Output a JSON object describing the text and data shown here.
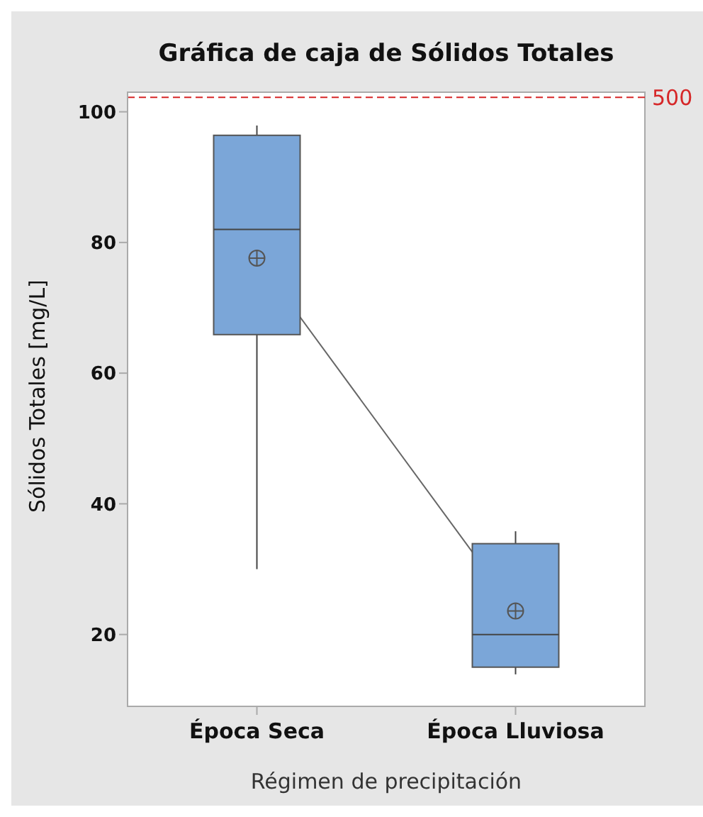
{
  "chart_data": {
    "type": "box",
    "title": "Gráfica de caja de Sólidos Totales",
    "xlabel": "Régimen de precipitación",
    "ylabel": "Sólidos Totales [mg/L]",
    "categories": [
      "Época Seca",
      "Época Lluviosa"
    ],
    "series": [
      {
        "color": "#7ba6d8",
        "boxes": [
          {
            "low": 30,
            "q1": 65.9,
            "median": 82,
            "q3": 96.4,
            "high": 97.9,
            "mean": 77.6
          },
          {
            "low": 13.9,
            "q1": 15,
            "median": 20,
            "q3": 33.9,
            "high": 35.8,
            "mean": 23.6
          }
        ]
      },
      {
        "type": "line",
        "color": "#666666",
        "values": [
          77.6,
          23.6
        ]
      }
    ],
    "ylim": [
      9,
      103
    ],
    "yticks": [
      20,
      40,
      60,
      80,
      100
    ],
    "ref_lines": [
      {
        "axis": "y",
        "value": 102.2,
        "color": "#d62728",
        "line_style": "dashed"
      }
    ],
    "annotations": [
      "500"
    ]
  }
}
